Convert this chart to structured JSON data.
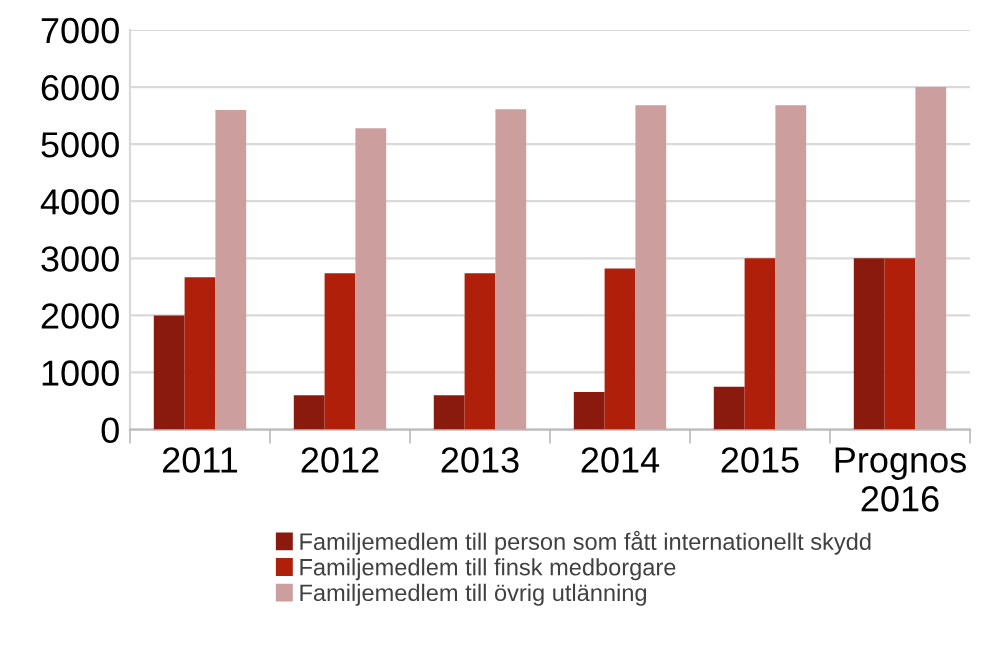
{
  "chart_data": {
    "type": "bar",
    "categories": [
      "2011",
      "2012",
      "2013",
      "2014",
      "2015",
      "Prognos\n2016"
    ],
    "series": [
      {
        "name": "Familjemedlem till person som fått internationellt skydd",
        "color": "#8b1a0e",
        "values": [
          2000,
          600,
          600,
          660,
          750,
          3000
        ]
      },
      {
        "name": "Familjemedlem till finsk medborgare",
        "color": "#b01f0a",
        "values": [
          2670,
          2740,
          2740,
          2820,
          3000,
          3000
        ]
      },
      {
        "name": "Familjemedlem till övrig utlänning",
        "color": "#cc9e9e",
        "values": [
          5600,
          5280,
          5610,
          5680,
          5680,
          6000
        ]
      }
    ],
    "ylim": [
      0,
      7000
    ],
    "yticks": [
      0,
      1000,
      2000,
      3000,
      4000,
      5000,
      6000,
      7000
    ],
    "grid": "y",
    "legend": "bottom"
  }
}
